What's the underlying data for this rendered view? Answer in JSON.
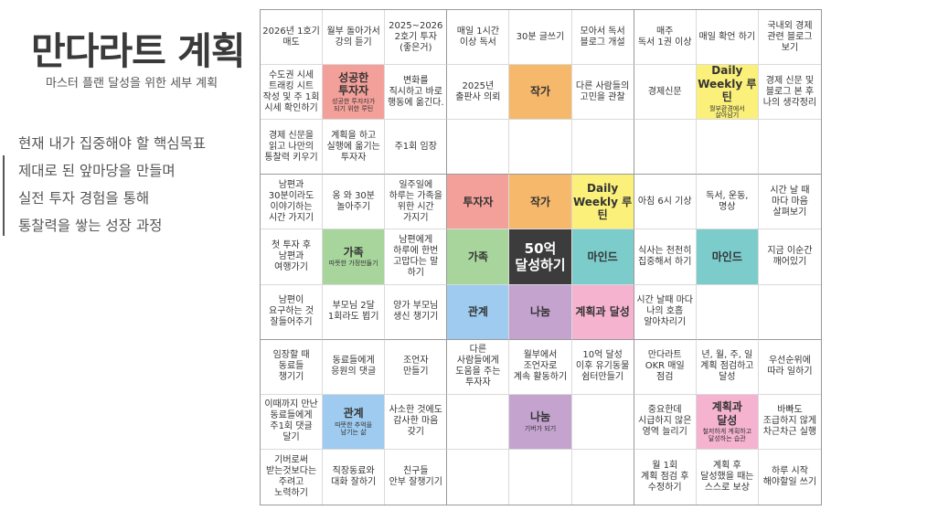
{
  "page": {
    "title": "만다라트 계획",
    "subtitle": "마스터 플랜 달성을 위한 세부 계획",
    "notes": [
      "현재 내가 집중해야 할 핵심목표",
      "제대로 된 앞마당을 만들며",
      "실전 투자 경험을 통해",
      "통찰력을 쌓는 성장 과정"
    ]
  },
  "grid": {
    "rows": [
      [
        {
          "main": "2026년 1호기\n매도"
        },
        {
          "main": "월부 돌아가서\n강의 듣기"
        },
        {
          "main": "2025~2026\n2호기 투자\n(좋은거)"
        },
        {
          "main": "매일 1시간\n이상 독서"
        },
        {
          "main": "30분 글쓰기"
        },
        {
          "main": "모아서 독서\n블로그 개설"
        },
        {
          "main": "매주\n독서 1권 이상"
        },
        {
          "main": "매일 확언 하기"
        },
        {
          "main": "국내외 경제\n관련 블로그\n보기"
        }
      ],
      [
        {
          "main": "수도권 시세\n트래킹 시트\n작성 및 주 1회\n시세 확인하기"
        },
        {
          "main": "성공한\n투자자",
          "sub": "성공한 투자자가\n되기 위한 루틴",
          "bg": "#f4a09a",
          "big": true
        },
        {
          "main": "변화를\n직시하고 바로\n행동에 옮긴다."
        },
        {
          "main": "2025년\n출판사 의뢰"
        },
        {
          "main": "작가",
          "bg": "#f6b96b",
          "big": true
        },
        {
          "main": "다른 사람들의\n고민을 관찰"
        },
        {
          "main": "경제신문"
        },
        {
          "main": "Daily\nWeekly 루틴",
          "sub": "월부환경에서\n살아남기",
          "bg": "#fbf07a",
          "big": true
        },
        {
          "main": "경제 신문 및\n블로그 본 후\n나의 생각정리"
        }
      ],
      [
        {
          "main": "경제 신문을\n읽고 나만의\n통찰력 키우기"
        },
        {
          "main": "계획을 하고\n실행에 옮기는\n투자자"
        },
        {
          "main": "주1회 임장"
        },
        {
          "main": ""
        },
        {
          "main": ""
        },
        {
          "main": ""
        },
        {
          "main": ""
        },
        {
          "main": ""
        },
        {
          "main": ""
        }
      ],
      [
        {
          "main": "남편과\n30분이라도\n이야기하는\n시간 가지기"
        },
        {
          "main": "옹 와 30분\n놀아주기"
        },
        {
          "main": "일주일에\n하루는 가족을\n위한 시간\n가지기"
        },
        {
          "main": "투자자",
          "bg": "#f4a09a",
          "big": true
        },
        {
          "main": "작가",
          "bg": "#f6b96b",
          "big": true
        },
        {
          "main": "Daily\nWeekly 루틴",
          "bg": "#fbf07a",
          "big": true
        },
        {
          "main": "아침 6시 기상"
        },
        {
          "main": "독서, 운동,\n명상"
        },
        {
          "main": "시간 날 때\n마다 마음\n살펴보기"
        }
      ],
      [
        {
          "main": "첫 투자 후\n남편과\n여행가기"
        },
        {
          "main": "가족",
          "sub": "따뜻한 가정만들기",
          "bg": "#a8d59c",
          "big": true
        },
        {
          "main": "남편에게\n하루에 한번\n고맙다는 말\n하기"
        },
        {
          "main": "가족",
          "bg": "#a8d59c",
          "big": true
        },
        {
          "main": "50억\n달성하기",
          "bg": "#3c3c3c",
          "color": "#ffffff",
          "big": true
        },
        {
          "main": "마인드",
          "bg": "#7ccccc",
          "big": true
        },
        {
          "main": "식사는 천천히\n집중해서 하기"
        },
        {
          "main": "마인드",
          "bg": "#7ccccc",
          "big": true
        },
        {
          "main": "지금 이순간\n깨어있기"
        }
      ],
      [
        {
          "main": "남편이\n요구하는 것\n잘들어주기"
        },
        {
          "main": "부모님 2달\n1회라도 뵙기"
        },
        {
          "main": "양가 부모님\n생신 챙기기"
        },
        {
          "main": "관계",
          "bg": "#9ecbef",
          "big": true
        },
        {
          "main": "나눔",
          "bg": "#c4a3cf",
          "big": true
        },
        {
          "main": "계획과 달성",
          "bg": "#f5b3cf",
          "big": true
        },
        {
          "main": "시간 날때 마다\n나의 호흡\n알아차리기"
        },
        {
          "main": ""
        },
        {
          "main": ""
        }
      ],
      [
        {
          "main": "임장할 때\n동료들\n챙기기"
        },
        {
          "main": "동료들에게\n응원의 댓글"
        },
        {
          "main": "조언자\n만들기"
        },
        {
          "main": "다른\n사람들에게\n도움을 주는\n투자자"
        },
        {
          "main": "월부에서\n조언자로\n계속 활동하기"
        },
        {
          "main": "10억 달성\n이후 유기동물\n쉼터만들기"
        },
        {
          "main": "만다라트\nOKR 매일\n점검"
        },
        {
          "main": "년, 월, 주, 일\n계획 점검하고\n달성"
        },
        {
          "main": "우선순위에\n따라 일하기"
        }
      ],
      [
        {
          "main": "이때까지 만난\n동료들에게\n주1회 댓글\n달기"
        },
        {
          "main": "관계",
          "sub": "따뜻한 추억을\n남기는 삶",
          "bg": "#9ecbef",
          "big": true
        },
        {
          "main": "사소한 것에도\n감사한 마음\n갖기"
        },
        {
          "main": ""
        },
        {
          "main": "나눔",
          "sub": "기버가 되기",
          "bg": "#c4a3cf",
          "big": true
        },
        {
          "main": ""
        },
        {
          "main": "중요한데\n시급하지 않은\n영역 늘리기"
        },
        {
          "main": "계획과\n달성",
          "sub": "철저하게 계획하고\n달성하는 습관",
          "bg": "#f5b3cf",
          "big": true
        },
        {
          "main": "바빠도\n조급하지 않게\n차근차근 실행"
        }
      ],
      [
        {
          "main": "기버로써\n받는것보다는\n주려고\n노력하기"
        },
        {
          "main": "직장동료와\n대화 잘하기"
        },
        {
          "main": "친구들\n안부 잘챙기기"
        },
        {
          "main": ""
        },
        {
          "main": ""
        },
        {
          "main": ""
        },
        {
          "main": "월 1회\n계획 점검 후\n수정하기"
        },
        {
          "main": "계획 후\n달성했을 때는\n스스로 보상"
        },
        {
          "main": "하루 시작\n해야할일 쓰기"
        }
      ]
    ]
  }
}
